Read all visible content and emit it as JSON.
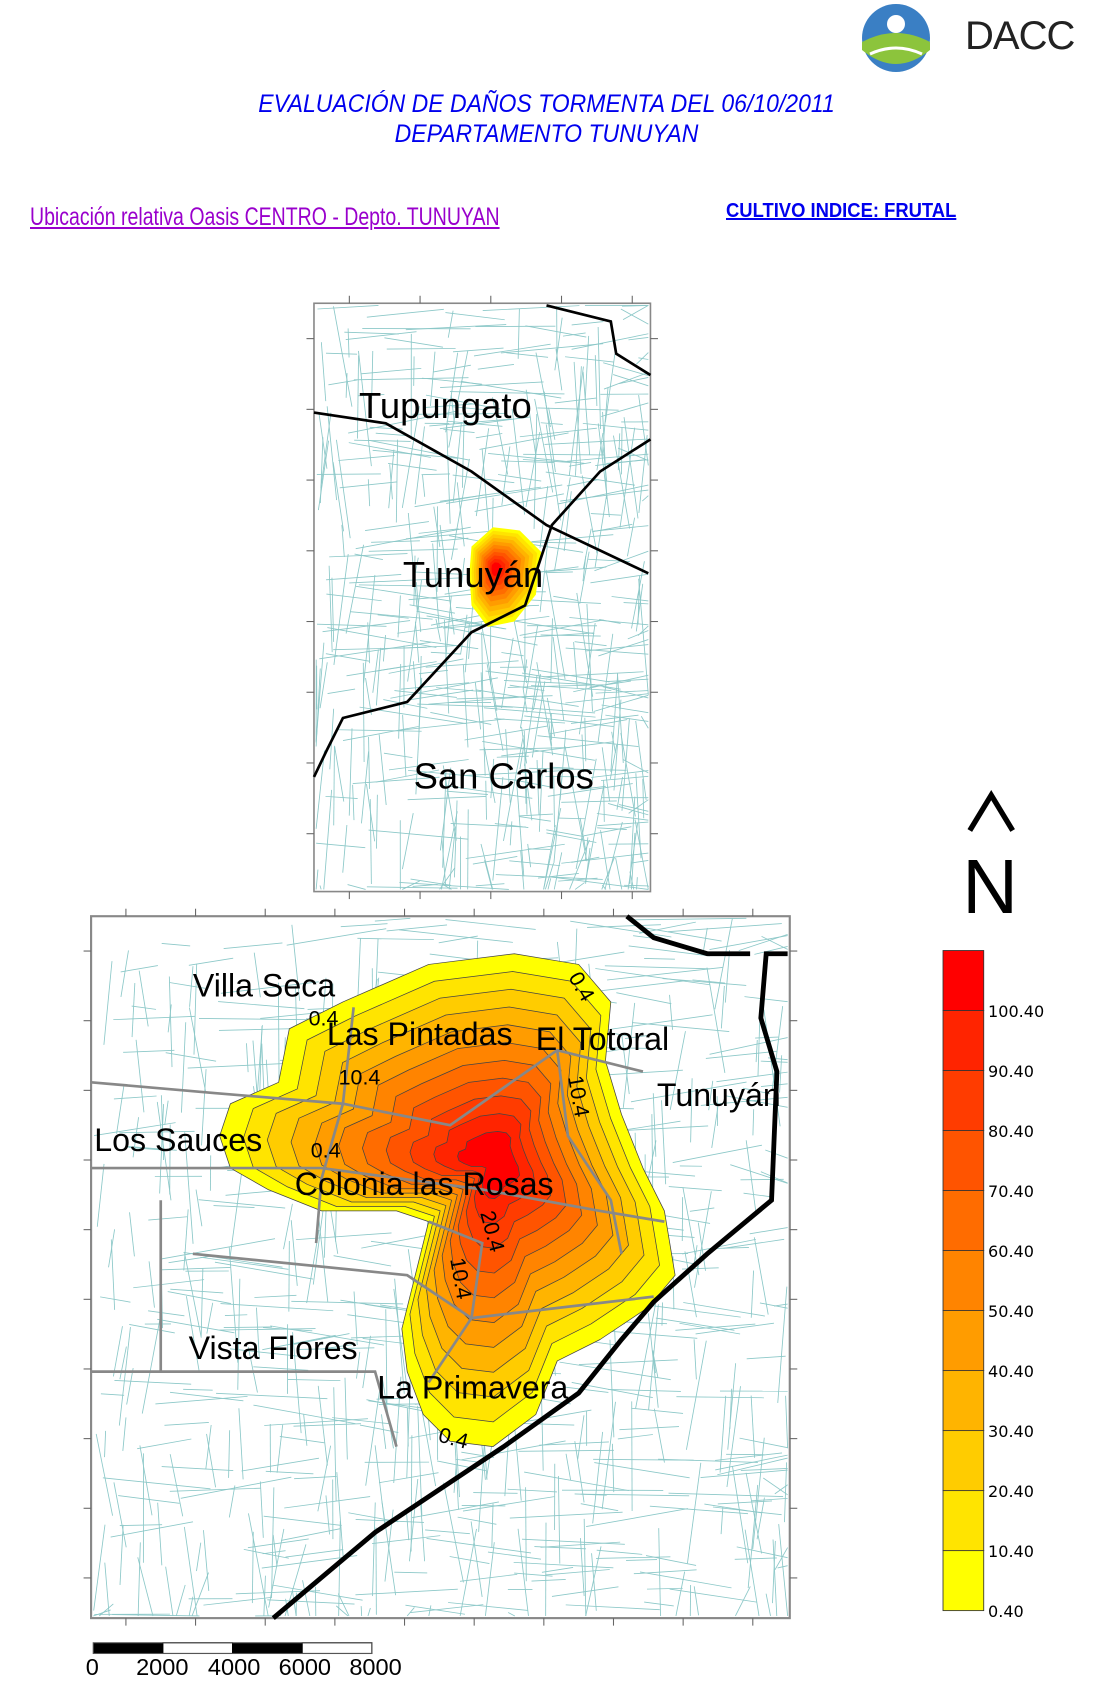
{
  "header": {
    "logo_text": "DACC",
    "title_line1": "EVALUACIÓN DE DAÑOS TORMENTA DEL 06/10/2011",
    "title_line2": "DEPARTAMENTO TUNUYAN",
    "subtitle": "Ubicación relativa Oasis CENTRO - Depto. TUNUYAN",
    "crop_index": "CULTIVO INDICE: FRUTAL"
  },
  "overview_map": {
    "places": [
      "Tupungato",
      "Tunuyán",
      "San Carlos"
    ]
  },
  "detail_map": {
    "places": [
      "Villa Seca",
      "Las Pintadas",
      "El Totoral",
      "Tunuyán",
      "Los Sauces",
      "Colonia las Rosas",
      "Vista Flores",
      "La Primavera"
    ],
    "contour_labels": [
      "0.4",
      "10.4",
      "0.4",
      "10.4",
      "0.4",
      "10.4",
      "20.4",
      "0.4"
    ]
  },
  "north_arrow": {
    "arrow": "^",
    "label": "N"
  },
  "legend": {
    "levels": [
      "0.40",
      "10.40",
      "20.40",
      "30.40",
      "40.40",
      "50.40",
      "60.40",
      "70.40",
      "80.40",
      "90.40",
      "100.40"
    ],
    "colors": [
      "#ffff00",
      "#ffe400",
      "#ffcc00",
      "#ffb400",
      "#ff9c00",
      "#ff8400",
      "#ff6c00",
      "#ff5400",
      "#ff3c00",
      "#ff2400",
      "#ff0000"
    ]
  },
  "scale_bar": {
    "labels": [
      "0",
      "2000",
      "4000",
      "6000",
      "8000"
    ]
  },
  "colors": {
    "title": "#0000ee",
    "subtitle": "#9900cc",
    "parcel_lines": "#8cc8c8",
    "roads": "#808080",
    "boundaries": "#000000"
  }
}
